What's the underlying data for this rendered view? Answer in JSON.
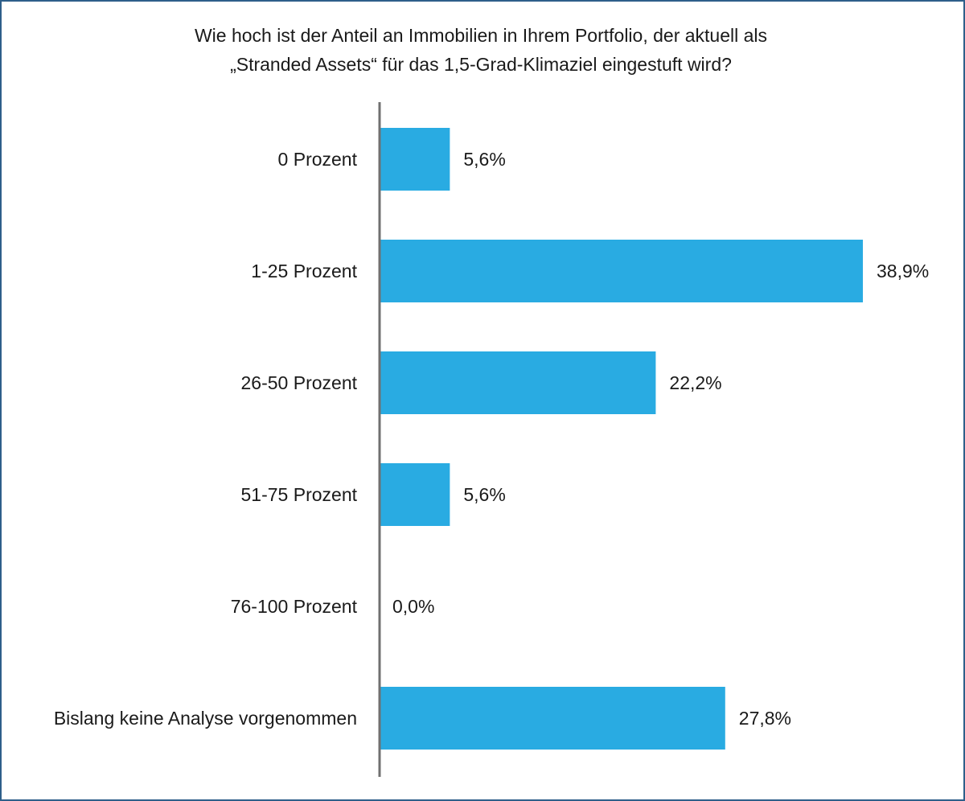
{
  "chart_data": {
    "type": "bar",
    "orientation": "horizontal",
    "title_lines": [
      "Wie hoch ist der Anteil an Immobilien in Ihrem Portfolio, der aktuell als",
      "„Stranded Assets“ für das 1,5-Grad-Klimaziel eingestuft wird?"
    ],
    "categories": [
      "0 Prozent",
      "1-25 Prozent",
      "26-50 Prozent",
      "51-75 Prozent",
      "76-100 Prozent",
      "Bislang keine Analyse vorgenommen"
    ],
    "values": [
      5.6,
      38.9,
      22.2,
      5.6,
      0.0,
      27.8
    ],
    "value_labels": [
      "5,6%",
      "38,9%",
      "22,2%",
      "5,6%",
      "0,0%",
      "27,8%"
    ],
    "xlim": [
      0,
      45
    ],
    "grid": false,
    "legend": "none",
    "bar_color": "#29abe2",
    "axis_color": "#707070"
  }
}
